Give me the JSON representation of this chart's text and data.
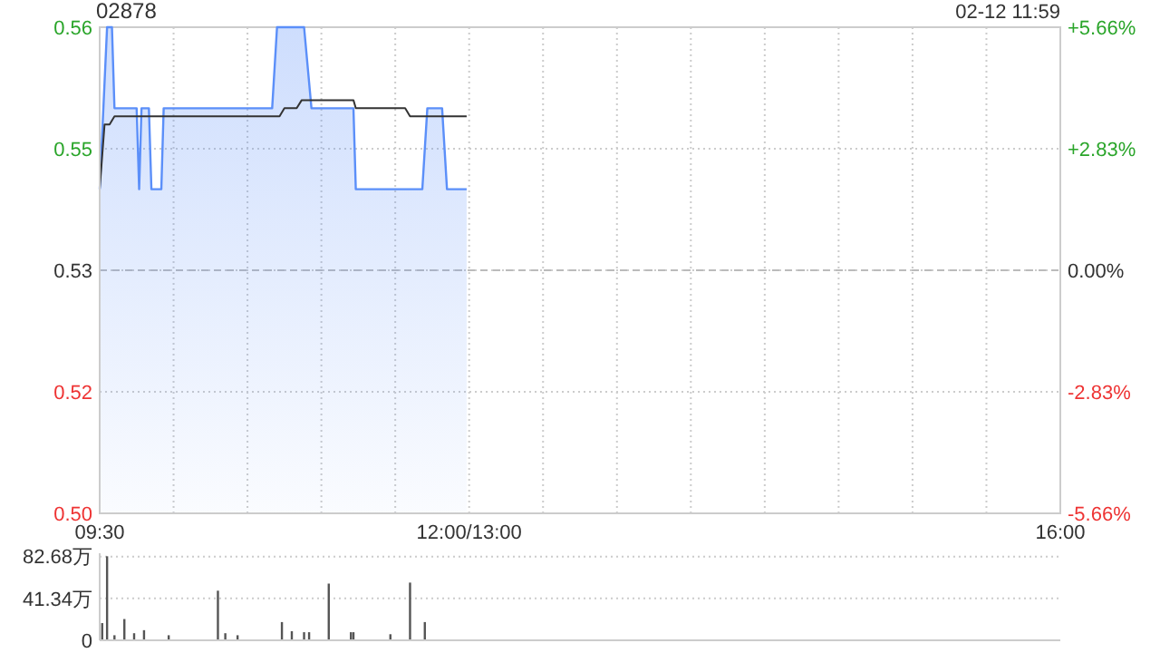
{
  "chart_data": [
    {
      "type": "area",
      "title": "02878",
      "annotations": [
        "02-12 11:59"
      ],
      "xlim": [
        9.5,
        16
      ],
      "xticks": [
        {
          "value": 9.5,
          "label": "09:30"
        },
        {
          "value": 10,
          "label": null
        },
        {
          "value": 10.5,
          "label": null
        },
        {
          "value": 11,
          "label": null
        },
        {
          "value": 11.5,
          "label": null
        },
        {
          "value": 12,
          "label": "12:00/13:00"
        },
        {
          "value": 12.5,
          "label": null
        },
        {
          "value": 13,
          "label": null
        },
        {
          "value": 13.5,
          "label": null
        },
        {
          "value": 14,
          "label": null
        },
        {
          "value": 14.5,
          "label": null
        },
        {
          "value": 15,
          "label": null
        },
        {
          "value": 15.5,
          "label": null
        },
        {
          "value": 16,
          "label": "16:00"
        }
      ],
      "ylim": [
        0.5,
        0.56
      ],
      "yticks": [
        {
          "value": 0.5,
          "label": "0.50"
        },
        {
          "value": 0.515,
          "label": "0.52"
        },
        {
          "value": 0.53,
          "label": "0.53"
        },
        {
          "value": 0.545,
          "label": "0.55"
        },
        {
          "value": 0.56,
          "label": "0.56"
        }
      ],
      "y2lim": [
        -5.66,
        5.66
      ],
      "y2ticks": [
        {
          "value": -5.66,
          "label": "-5.66%"
        },
        {
          "value": -2.83,
          "label": "-2.83%"
        },
        {
          "value": 0,
          "label": "0.00%"
        },
        {
          "value": 2.83,
          "label": "+2.83%"
        },
        {
          "value": 5.66,
          "label": "+5.66%"
        }
      ],
      "grid": true,
      "ref_lines": [
        {
          "axis": "y2",
          "value": 0,
          "color": "#bbbbbb",
          "line_style": "dashed"
        }
      ],
      "series": [
        {
          "type": "area",
          "color": "#5b8ff9",
          "x": [
            9.5,
            9.55,
            9.583,
            9.6,
            9.75,
            9.767,
            9.783,
            9.833,
            9.85,
            9.917,
            9.933,
            10.667,
            10.7,
            10.883,
            10.933,
            11.217,
            11.233,
            11.683,
            11.717,
            11.817,
            11.85,
            11.983
          ],
          "values": [
            0.54,
            0.56,
            0.56,
            0.55,
            0.55,
            0.54,
            0.55,
            0.55,
            0.54,
            0.54,
            0.55,
            0.55,
            0.56,
            0.56,
            0.55,
            0.55,
            0.54,
            0.54,
            0.55,
            0.55,
            0.54,
            0.54
          ]
        },
        {
          "type": "line",
          "color": "#333333",
          "x": [
            9.5,
            9.533,
            9.567,
            9.6,
            10.717,
            10.75,
            10.833,
            10.867,
            11.217,
            11.233,
            11.567,
            11.6,
            11.983
          ],
          "values": [
            0.54,
            0.548,
            0.548,
            0.549,
            0.549,
            0.55,
            0.55,
            0.551,
            0.551,
            0.55,
            0.55,
            0.549,
            0.549
          ]
        }
      ]
    },
    {
      "type": "bar",
      "tick_labels": "y",
      "xlim": [
        9.5,
        16
      ],
      "ylim": [
        0,
        86
      ],
      "yticks": [
        0,
        {
          "value": 41.34,
          "label": "41.34万"
        },
        {
          "value": 82.68,
          "label": "82.68万"
        }
      ],
      "grid": "y",
      "color": "#555555",
      "x": [
        9.517,
        9.55,
        9.6,
        9.667,
        9.733,
        9.8,
        9.967,
        10.3,
        10.35,
        10.433,
        10.733,
        10.8,
        10.883,
        10.917,
        11.05,
        11.2,
        11.217,
        11.467,
        11.6,
        11.7
      ],
      "values": [
        17,
        83,
        5,
        21,
        7,
        10,
        5,
        49,
        7,
        5,
        18,
        9,
        8,
        8,
        56,
        8,
        8,
        6,
        57,
        18
      ]
    }
  ]
}
